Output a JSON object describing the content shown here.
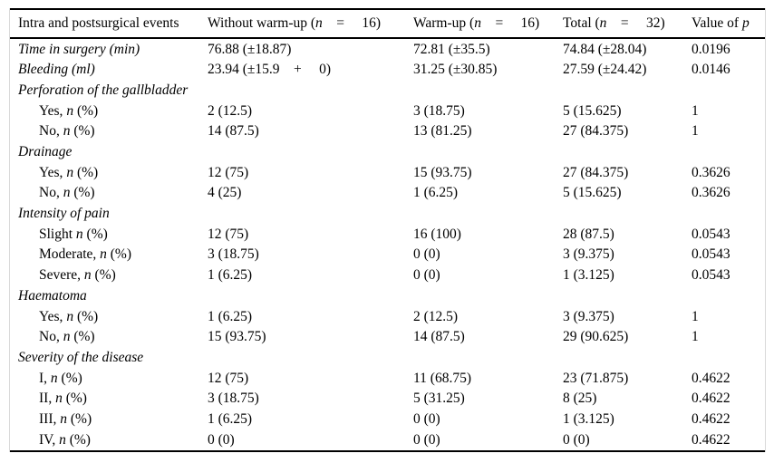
{
  "table": {
    "columns": [
      {
        "segments": [
          {
            "t": "Intra and postsurgical events"
          }
        ]
      },
      {
        "segments": [
          {
            "t": "Without warm-up ("
          },
          {
            "t": "n",
            "i": true
          },
          {
            "t": " =  16)"
          }
        ]
      },
      {
        "segments": [
          {
            "t": "Warm-up ("
          },
          {
            "t": "n",
            "i": true
          },
          {
            "t": " =  16)"
          }
        ]
      },
      {
        "segments": [
          {
            "t": "Total ("
          },
          {
            "t": "n",
            "i": true
          },
          {
            "t": " =  32)"
          }
        ]
      },
      {
        "segments": [
          {
            "t": "Value of "
          },
          {
            "t": "p",
            "i": true
          }
        ]
      }
    ],
    "rows": [
      {
        "kind": "measure",
        "indent": 0,
        "label_italic": true,
        "label": [
          {
            "t": "Time in surgery (min)"
          }
        ],
        "cells": [
          "76.88 (±18.87)",
          "72.81 (±35.5)",
          "74.84 (±28.04)",
          "0.0196"
        ]
      },
      {
        "kind": "measure",
        "indent": 0,
        "label_italic": true,
        "label": [
          {
            "t": "Bleeding (ml)"
          }
        ],
        "cells": [
          "23.94 (±15.9 +  0)",
          "31.25 (±30.85)",
          "27.59 (±24.42)",
          "0.0146"
        ]
      },
      {
        "kind": "section",
        "indent": 0,
        "label_italic": true,
        "label": [
          {
            "t": "Perforation of the gallbladder"
          }
        ],
        "cells": [
          "",
          "",
          "",
          ""
        ]
      },
      {
        "kind": "sub",
        "indent": 1,
        "label_italic": false,
        "label": [
          {
            "t": "Yes, "
          },
          {
            "t": "n",
            "i": true
          },
          {
            "t": " (%)"
          }
        ],
        "cells": [
          "2 (12.5)",
          "3 (18.75)",
          "5 (15.625)",
          "1"
        ]
      },
      {
        "kind": "sub",
        "indent": 1,
        "label_italic": false,
        "label": [
          {
            "t": "No, "
          },
          {
            "t": "n",
            "i": true
          },
          {
            "t": " (%)"
          }
        ],
        "cells": [
          "14 (87.5)",
          "13 (81.25)",
          "27 (84.375)",
          "1"
        ]
      },
      {
        "kind": "section",
        "indent": 0,
        "label_italic": true,
        "label": [
          {
            "t": "Drainage"
          }
        ],
        "cells": [
          "",
          "",
          "",
          ""
        ]
      },
      {
        "kind": "sub",
        "indent": 1,
        "label_italic": false,
        "label": [
          {
            "t": "Yes, "
          },
          {
            "t": "n",
            "i": true
          },
          {
            "t": " (%)"
          }
        ],
        "cells": [
          "12 (75)",
          "15 (93.75)",
          "27 (84.375)",
          "0.3626"
        ]
      },
      {
        "kind": "sub",
        "indent": 1,
        "label_italic": false,
        "label": [
          {
            "t": "No, "
          },
          {
            "t": "n",
            "i": true
          },
          {
            "t": " (%)"
          }
        ],
        "cells": [
          "4 (25)",
          "1 (6.25)",
          "5 (15.625)",
          "0.3626"
        ]
      },
      {
        "kind": "section",
        "indent": 0,
        "label_italic": true,
        "label": [
          {
            "t": "Intensity of pain"
          }
        ],
        "cells": [
          "",
          "",
          "",
          ""
        ]
      },
      {
        "kind": "sub",
        "indent": 1,
        "label_italic": false,
        "label": [
          {
            "t": "Slight "
          },
          {
            "t": "n",
            "i": true
          },
          {
            "t": " (%)"
          }
        ],
        "cells": [
          "12 (75)",
          "16 (100)",
          "28 (87.5)",
          "0.0543"
        ]
      },
      {
        "kind": "sub",
        "indent": 1,
        "label_italic": false,
        "label": [
          {
            "t": "Moderate, "
          },
          {
            "t": "n",
            "i": true
          },
          {
            "t": " (%)"
          }
        ],
        "cells": [
          "3 (18.75)",
          "0 (0)",
          "3 (9.375)",
          "0.0543"
        ]
      },
      {
        "kind": "sub",
        "indent": 1,
        "label_italic": false,
        "label": [
          {
            "t": "Severe, "
          },
          {
            "t": "n",
            "i": true
          },
          {
            "t": " (%)"
          }
        ],
        "cells": [
          "1 (6.25)",
          "0 (0)",
          "1 (3.125)",
          "0.0543"
        ]
      },
      {
        "kind": "section",
        "indent": 0,
        "label_italic": true,
        "label": [
          {
            "t": "Haematoma"
          }
        ],
        "cells": [
          "",
          "",
          "",
          ""
        ]
      },
      {
        "kind": "sub",
        "indent": 1,
        "label_italic": false,
        "label": [
          {
            "t": "Yes, "
          },
          {
            "t": "n",
            "i": true
          },
          {
            "t": " (%)"
          }
        ],
        "cells": [
          "1 (6.25)",
          "2 (12.5)",
          "3 (9.375)",
          "1"
        ]
      },
      {
        "kind": "sub",
        "indent": 1,
        "label_italic": false,
        "label": [
          {
            "t": "No, "
          },
          {
            "t": "n",
            "i": true
          },
          {
            "t": " (%)"
          }
        ],
        "cells": [
          "15 (93.75)",
          "14 (87.5)",
          "29 (90.625)",
          "1"
        ]
      },
      {
        "kind": "section",
        "indent": 0,
        "label_italic": true,
        "label": [
          {
            "t": "Severity of the disease"
          }
        ],
        "cells": [
          "",
          "",
          "",
          ""
        ]
      },
      {
        "kind": "sub",
        "indent": 1,
        "label_italic": false,
        "label": [
          {
            "t": "I, "
          },
          {
            "t": "n",
            "i": true
          },
          {
            "t": " (%)"
          }
        ],
        "cells": [
          "12 (75)",
          "11 (68.75)",
          "23 (71.875)",
          "0.4622"
        ]
      },
      {
        "kind": "sub",
        "indent": 1,
        "label_italic": false,
        "label": [
          {
            "t": "II, "
          },
          {
            "t": "n",
            "i": true
          },
          {
            "t": " (%)"
          }
        ],
        "cells": [
          "3 (18.75)",
          "5 (31.25)",
          "8 (25)",
          "0.4622"
        ]
      },
      {
        "kind": "sub",
        "indent": 1,
        "label_italic": false,
        "label": [
          {
            "t": "III, "
          },
          {
            "t": "n",
            "i": true
          },
          {
            "t": " (%)"
          }
        ],
        "cells": [
          "1 (6.25)",
          "0 (0)",
          "1 (3.125)",
          "0.4622"
        ]
      },
      {
        "kind": "sub",
        "indent": 1,
        "label_italic": false,
        "label": [
          {
            "t": "IV, "
          },
          {
            "t": "n",
            "i": true
          },
          {
            "t": " (%)"
          }
        ],
        "cells": [
          "0 (0)",
          "0 (0)",
          "0 (0)",
          "0.4622"
        ]
      }
    ]
  },
  "colors": {
    "text": "#000000",
    "rule": "#000000",
    "faint_frame": "#d9d9d9",
    "background": "#ffffff"
  }
}
